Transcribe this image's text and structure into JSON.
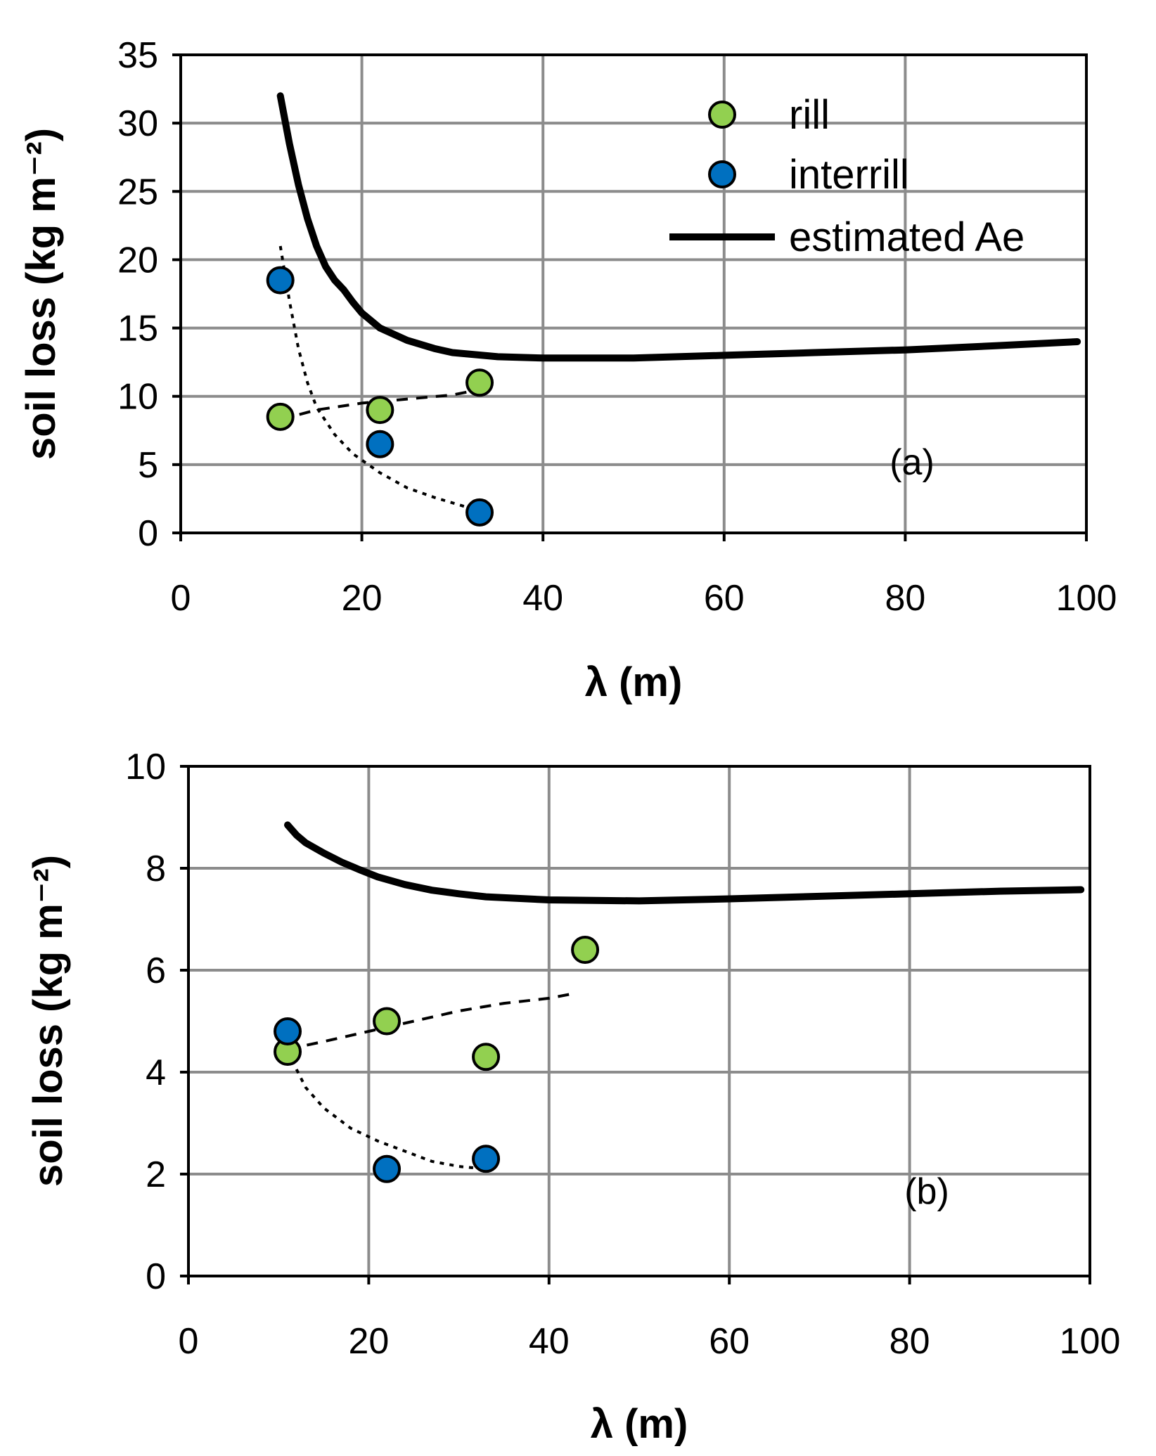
{
  "chart_data": [
    {
      "type": "scatter",
      "panel_label": "(a)",
      "xlabel": "λ (m)",
      "ylabel": "soil loss (kg m⁻²)",
      "xlim": [
        0,
        100
      ],
      "ylim": [
        0,
        35
      ],
      "xticks": [
        0,
        20,
        40,
        60,
        80,
        100
      ],
      "yticks": [
        0,
        5,
        10,
        15,
        20,
        25,
        30,
        35
      ],
      "grid": true,
      "legend": {
        "placement": "top-right",
        "entries": [
          {
            "key": "rill",
            "label": "rill",
            "marker": "circle",
            "color": "#92d050"
          },
          {
            "key": "interrill",
            "label": "interrill",
            "marker": "circle",
            "color": "#0070c0"
          },
          {
            "key": "estimated",
            "label": "estimated Ae",
            "marker": "line",
            "color": "#000000"
          }
        ]
      },
      "series": [
        {
          "name": "rill",
          "style": "scatter",
          "color": "#92d050",
          "x": [
            11,
            22,
            33
          ],
          "y": [
            8.5,
            9.0,
            11.0
          ]
        },
        {
          "name": "interrill",
          "style": "scatter",
          "color": "#0070c0",
          "x": [
            11,
            22,
            33
          ],
          "y": [
            18.5,
            6.5,
            1.5
          ]
        },
        {
          "name": "estimated Ae",
          "style": "line",
          "color": "#000000",
          "x": [
            11,
            12,
            13,
            14,
            15,
            16,
            17,
            18,
            19,
            20,
            22,
            25,
            28,
            30,
            35,
            40,
            50,
            60,
            70,
            80,
            90,
            99
          ],
          "y": [
            32,
            28.5,
            25.5,
            23,
            21,
            19.5,
            18.5,
            17.8,
            16.9,
            16.1,
            15.0,
            14.1,
            13.5,
            13.2,
            12.9,
            12.8,
            12.8,
            13.0,
            13.2,
            13.4,
            13.7,
            14.0
          ]
        },
        {
          "name": "rill trend",
          "style": "dashed",
          "color": "#000000",
          "x": [
            11,
            15,
            20,
            25,
            30,
            33
          ],
          "y": [
            8.3,
            9.0,
            9.5,
            9.8,
            10.1,
            10.5
          ]
        },
        {
          "name": "interrill trend",
          "style": "dotted",
          "color": "#000000",
          "x": [
            11,
            12,
            13,
            14,
            15,
            17,
            19,
            22,
            25,
            28,
            31,
            33
          ],
          "y": [
            21,
            17,
            13.5,
            11,
            9.2,
            7.2,
            5.8,
            4.4,
            3.3,
            2.6,
            2.0,
            1.6
          ]
        }
      ]
    },
    {
      "type": "scatter",
      "panel_label": "(b)",
      "xlabel": "λ (m)",
      "ylabel": "soil loss (kg m⁻²)",
      "xlim": [
        0,
        100
      ],
      "ylim": [
        0,
        10
      ],
      "xticks": [
        0,
        20,
        40,
        60,
        80,
        100
      ],
      "yticks": [
        0,
        2,
        4,
        6,
        8,
        10
      ],
      "grid": true,
      "series": [
        {
          "name": "rill",
          "style": "scatter",
          "color": "#92d050",
          "x": [
            11,
            22,
            33,
            44
          ],
          "y": [
            4.4,
            5.0,
            4.3,
            6.4
          ]
        },
        {
          "name": "interrill",
          "style": "scatter",
          "color": "#0070c0",
          "x": [
            11,
            22,
            33
          ],
          "y": [
            4.8,
            2.1,
            2.3
          ]
        },
        {
          "name": "estimated Ae",
          "style": "line",
          "color": "#000000",
          "x": [
            11,
            12,
            13,
            15,
            17,
            19,
            21,
            24,
            27,
            30,
            33,
            40,
            50,
            60,
            70,
            80,
            90,
            99
          ],
          "y": [
            8.85,
            8.65,
            8.5,
            8.3,
            8.12,
            7.97,
            7.83,
            7.68,
            7.57,
            7.5,
            7.44,
            7.38,
            7.36,
            7.4,
            7.45,
            7.5,
            7.55,
            7.58
          ]
        },
        {
          "name": "rill trend",
          "style": "dashed",
          "color": "#000000",
          "x": [
            11,
            15,
            20,
            25,
            30,
            35,
            40,
            43
          ],
          "y": [
            4.45,
            4.6,
            4.8,
            5.0,
            5.2,
            5.35,
            5.45,
            5.55
          ]
        },
        {
          "name": "interrill trend",
          "style": "dotted",
          "color": "#000000",
          "x": [
            11,
            13,
            15,
            18,
            21,
            24,
            27,
            30,
            33
          ],
          "y": [
            4.4,
            3.7,
            3.3,
            2.9,
            2.65,
            2.45,
            2.25,
            2.15,
            2.1
          ]
        }
      ]
    }
  ]
}
